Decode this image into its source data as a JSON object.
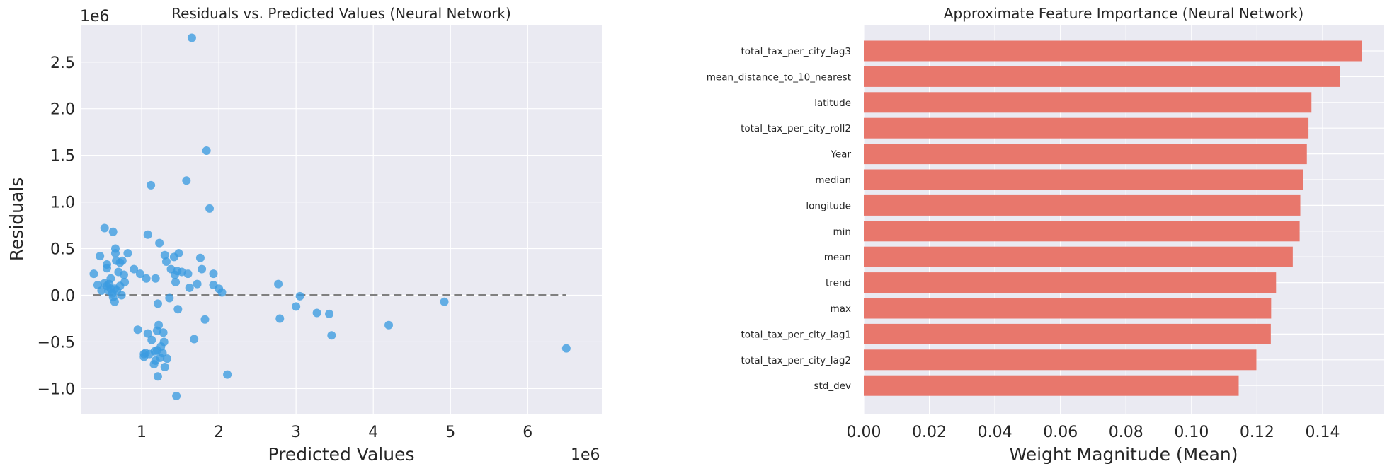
{
  "chart_data": [
    {
      "type": "scatter",
      "title": "Residuals vs. Predicted Values (Neural Network)",
      "xlabel": "Predicted Values",
      "ylabel": "Residuals",
      "x_offset_label": "1e6",
      "y_offset_label": "1e6",
      "xlim": [
        0.22,
        6.96
      ],
      "ylim": [
        -1.27,
        2.9
      ],
      "xticks": [
        1,
        2,
        3,
        4,
        5,
        6
      ],
      "yticks": [
        -1.0,
        -0.5,
        0.0,
        0.5,
        1.0,
        1.5,
        2.0,
        2.5
      ],
      "xtick_labels": [
        "1",
        "2",
        "3",
        "4",
        "5",
        "6"
      ],
      "ytick_labels": [
        "−1.0",
        "−0.5",
        "0.0",
        "0.5",
        "1.0",
        "1.5",
        "2.0",
        "2.5"
      ],
      "reference_line": {
        "y": 0.0,
        "x_from": 0.37,
        "x_to": 6.5,
        "style": "dashed",
        "color": "#808080"
      },
      "point_color": "#3b9be0",
      "grid": true,
      "points": [
        [
          0.38,
          0.23
        ],
        [
          0.43,
          0.11
        ],
        [
          0.46,
          0.42
        ],
        [
          0.48,
          0.05
        ],
        [
          0.52,
          0.13
        ],
        [
          0.52,
          0.72
        ],
        [
          0.55,
          0.29
        ],
        [
          0.55,
          0.33
        ],
        [
          0.55,
          0.1
        ],
        [
          0.57,
          0.05
        ],
        [
          0.58,
          0.12
        ],
        [
          0.6,
          0.18
        ],
        [
          0.6,
          0.07
        ],
        [
          0.62,
          0.02
        ],
        [
          0.63,
          0.68
        ],
        [
          0.63,
          -0.02
        ],
        [
          0.65,
          -0.07
        ],
        [
          0.65,
          0.07
        ],
        [
          0.66,
          0.5
        ],
        [
          0.66,
          0.45
        ],
        [
          0.67,
          0.37
        ],
        [
          0.68,
          0.05
        ],
        [
          0.7,
          0.25
        ],
        [
          0.72,
          0.1
        ],
        [
          0.72,
          0.35
        ],
        [
          0.75,
          0.37
        ],
        [
          0.77,
          0.22
        ],
        [
          0.78,
          0.14
        ],
        [
          0.74,
          0.0
        ],
        [
          0.82,
          0.45
        ],
        [
          0.9,
          0.28
        ],
        [
          0.95,
          -0.37
        ],
        [
          0.98,
          0.23
        ],
        [
          1.03,
          -0.63
        ],
        [
          1.03,
          -0.66
        ],
        [
          1.05,
          -0.62
        ],
        [
          1.06,
          0.18
        ],
        [
          1.08,
          0.65
        ],
        [
          1.08,
          -0.41
        ],
        [
          1.1,
          -0.63
        ],
        [
          1.12,
          1.18
        ],
        [
          1.13,
          -0.48
        ],
        [
          1.16,
          -0.74
        ],
        [
          1.17,
          -0.6
        ],
        [
          1.18,
          0.18
        ],
        [
          1.18,
          -0.7
        ],
        [
          1.2,
          -0.38
        ],
        [
          1.2,
          -0.59
        ],
        [
          1.21,
          -0.87
        ],
        [
          1.21,
          -0.09
        ],
        [
          1.22,
          -0.32
        ],
        [
          1.23,
          0.56
        ],
        [
          1.24,
          -0.67
        ],
        [
          1.25,
          -0.55
        ],
        [
          1.27,
          -0.62
        ],
        [
          1.28,
          -0.4
        ],
        [
          1.29,
          -0.5
        ],
        [
          1.3,
          -0.77
        ],
        [
          1.3,
          0.43
        ],
        [
          1.32,
          0.36
        ],
        [
          1.33,
          -0.68
        ],
        [
          1.36,
          -0.03
        ],
        [
          1.38,
          0.28
        ],
        [
          1.42,
          0.41
        ],
        [
          1.43,
          0.22
        ],
        [
          1.44,
          0.14
        ],
        [
          1.45,
          -1.08
        ],
        [
          1.46,
          0.26
        ],
        [
          1.47,
          -0.15
        ],
        [
          1.48,
          0.45
        ],
        [
          1.52,
          0.25
        ],
        [
          1.58,
          1.23
        ],
        [
          1.6,
          0.23
        ],
        [
          1.62,
          0.08
        ],
        [
          1.65,
          2.76
        ],
        [
          1.68,
          -0.47
        ],
        [
          1.72,
          0.12
        ],
        [
          1.76,
          0.4
        ],
        [
          1.78,
          0.28
        ],
        [
          1.82,
          -0.26
        ],
        [
          1.84,
          1.55
        ],
        [
          1.88,
          0.93
        ],
        [
          1.93,
          0.23
        ],
        [
          1.93,
          0.11
        ],
        [
          2.0,
          0.07
        ],
        [
          2.04,
          0.03
        ],
        [
          2.11,
          -0.85
        ],
        [
          2.77,
          0.12
        ],
        [
          2.79,
          -0.25
        ],
        [
          3.0,
          -0.12
        ],
        [
          3.05,
          -0.01
        ],
        [
          3.27,
          -0.19
        ],
        [
          3.43,
          -0.2
        ],
        [
          3.46,
          -0.43
        ],
        [
          4.2,
          -0.32
        ],
        [
          4.92,
          -0.07
        ],
        [
          6.5,
          -0.57
        ]
      ]
    },
    {
      "type": "bar",
      "orientation": "horizontal",
      "title": "Approximate Feature Importance (Neural Network)",
      "xlabel": "Weight Magnitude (Mean)",
      "ylabel": "",
      "xlim": [
        0.0,
        0.1588
      ],
      "xticks": [
        0.0,
        0.02,
        0.04,
        0.06,
        0.08,
        0.1,
        0.12,
        0.14
      ],
      "xtick_labels": [
        "0.00",
        "0.02",
        "0.04",
        "0.06",
        "0.08",
        "0.10",
        "0.12",
        "0.14"
      ],
      "bar_color": "#e8776c",
      "grid": true,
      "categories": [
        "total_tax_per_city_lag3",
        "mean_distance_to_10_nearest",
        "latitude",
        "total_tax_per_city_roll2",
        "Year",
        "median",
        "longitude",
        "min",
        "mean",
        "trend",
        "max",
        "total_tax_per_city_lag1",
        "total_tax_per_city_lag2",
        "std_dev"
      ],
      "values": [
        0.1519,
        0.1454,
        0.1366,
        0.1357,
        0.1352,
        0.134,
        0.1332,
        0.133,
        0.1309,
        0.1258,
        0.1243,
        0.1242,
        0.1198,
        0.1144
      ]
    }
  ]
}
